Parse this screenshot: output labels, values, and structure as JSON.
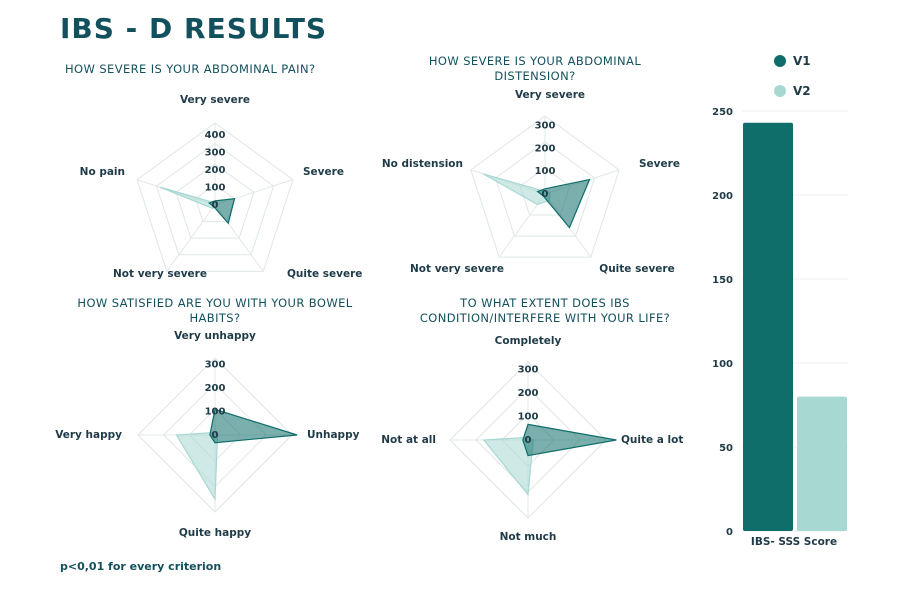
{
  "title": "IBS - D RESULTS",
  "footnote": "p<0,01 for every criterion",
  "colors": {
    "v1": "#0f6e6a",
    "v2": "#a8d8d2"
  },
  "chart_data": [
    {
      "type": "radar",
      "title": "HOW SEVERE IS YOUR ABDOMINAL PAIN?",
      "axes": [
        "Very severe",
        "Severe",
        "Quite severe",
        "Not very severe",
        "No pain"
      ],
      "ticks": [
        0,
        100,
        200,
        300,
        400
      ],
      "rmax": 400,
      "series": [
        {
          "name": "V1",
          "values": [
            20,
            100,
            110,
            10,
            30
          ]
        },
        {
          "name": "V2",
          "values": [
            10,
            10,
            10,
            20,
            280
          ]
        }
      ]
    },
    {
      "type": "radar",
      "title": "HOW SEVERE IS YOUR ABDOMINAL DISTENSION?",
      "axes": [
        "Very severe",
        "Severe",
        "Quite severe",
        "Not very severe",
        "No distension"
      ],
      "ticks": [
        0,
        100,
        200,
        300
      ],
      "rmax": 300,
      "series": [
        {
          "name": "V1",
          "values": [
            20,
            180,
            160,
            10,
            30
          ]
        },
        {
          "name": "V2",
          "values": [
            10,
            20,
            30,
            50,
            250
          ]
        }
      ]
    },
    {
      "type": "radar",
      "title": "HOW SATISFIED ARE YOU WITH YOUR BOWEL HABITS?",
      "axes": [
        "Very unhappy",
        "Unhappy",
        "Quite happy",
        "Very happy"
      ],
      "ticks": [
        0,
        100,
        200,
        300
      ],
      "rmax": 300,
      "series": [
        {
          "name": "V1",
          "values": [
            100,
            320,
            30,
            20
          ]
        },
        {
          "name": "V2",
          "values": [
            10,
            10,
            250,
            150
          ]
        }
      ]
    },
    {
      "type": "radar",
      "title": "TO WHAT EXTENT DOES IBS CONDITION/INTERFERE WITH YOUR LIFE?",
      "axes": [
        "Completely",
        "Quite a lot",
        "Not much",
        "Not at all"
      ],
      "ticks": [
        0,
        100,
        200,
        300
      ],
      "rmax": 300,
      "series": [
        {
          "name": "V1",
          "values": [
            60,
            340,
            60,
            20
          ]
        },
        {
          "name": "V2",
          "values": [
            10,
            20,
            210,
            170
          ]
        }
      ]
    },
    {
      "type": "bar",
      "categories": [
        "IBS- SSS Score"
      ],
      "series": [
        {
          "name": "V1",
          "values": [
            243
          ]
        },
        {
          "name": "V2",
          "values": [
            80
          ]
        }
      ],
      "yticks": [
        0,
        50,
        100,
        150,
        200,
        250
      ],
      "ylim": [
        0,
        250
      ]
    }
  ],
  "legend": [
    "V1",
    "V2"
  ]
}
